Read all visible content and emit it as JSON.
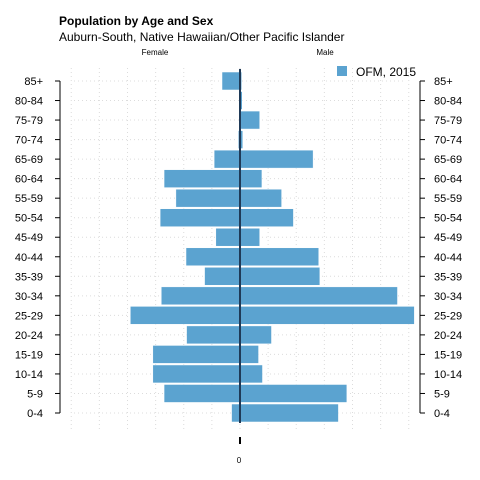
{
  "chart_data": {
    "type": "bar",
    "orientation": "horizontal-pyramid",
    "title": "Population by Age and Sex",
    "subtitle": "Auburn-South, Native Hawaiian/Other Pacific Islander",
    "left_label": "Female",
    "right_label": "Male",
    "x_tick_label": "0",
    "legend": {
      "position": "top-right",
      "label": "OFM, 2015",
      "color": "#5ba3d0"
    },
    "grid": true,
    "xlim": [
      -32,
      32
    ],
    "categories": [
      "0-4",
      "5-9",
      "10-14",
      "15-19",
      "20-24",
      "25-29",
      "30-34",
      "35-39",
      "40-44",
      "45-49",
      "50-54",
      "55-59",
      "60-64",
      "65-69",
      "70-74",
      "75-79",
      "80-84",
      "85+"
    ],
    "series": [
      {
        "side": "female",
        "values": [
          1.5,
          13.5,
          15.5,
          15.5,
          9.5,
          19.5,
          14,
          6.3,
          9.6,
          4.3,
          14.2,
          11.4,
          13.5,
          4.6,
          0.3,
          0.1,
          0.1,
          3.2
        ]
      },
      {
        "side": "male",
        "values": [
          17.5,
          19,
          4,
          3.3,
          5.6,
          31,
          28,
          14.2,
          14,
          3.5,
          9.5,
          7.4,
          3.9,
          13,
          0.5,
          3.5,
          0.4,
          0.3
        ]
      }
    ]
  }
}
